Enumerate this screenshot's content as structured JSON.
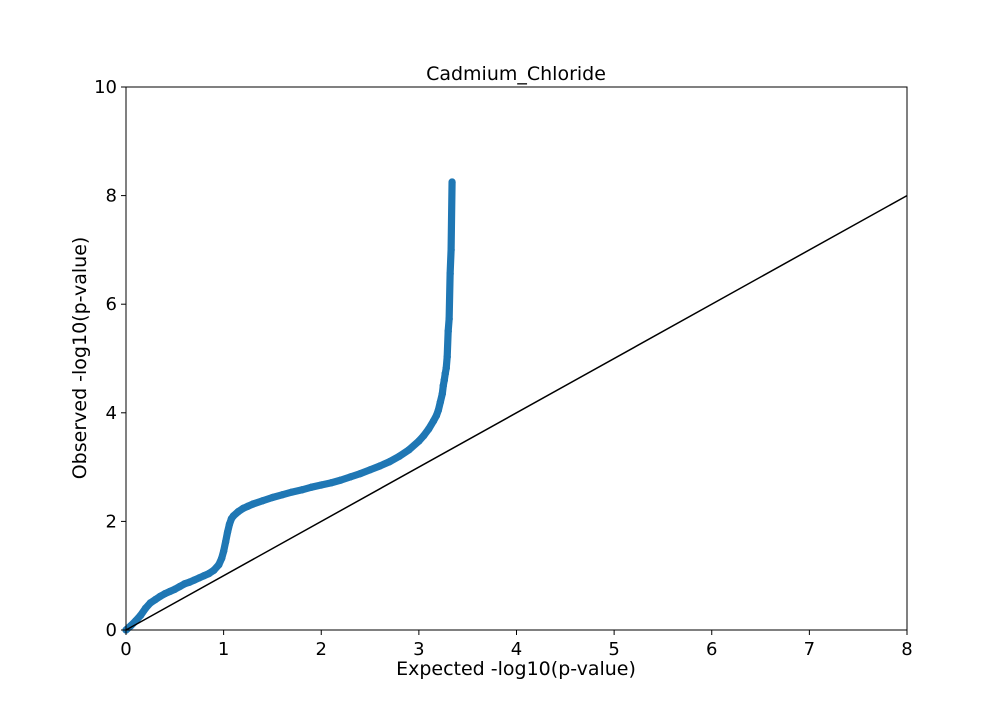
{
  "chart_data": {
    "type": "scatter",
    "title": "Cadmium_Chloride",
    "xlabel": "Expected -log10(p-value)",
    "ylabel": "Observed -log10(p-value)",
    "xlim": [
      0,
      8
    ],
    "ylim": [
      0,
      10
    ],
    "xticks": [
      "0",
      "1",
      "2",
      "3",
      "4",
      "5",
      "6",
      "7",
      "8"
    ],
    "yticks": [
      "0",
      "2",
      "4",
      "6",
      "8",
      "10"
    ],
    "grid": false,
    "point_color": "#1f77b4",
    "reference_line": {
      "from": [
        0,
        0
      ],
      "to": [
        8,
        8
      ],
      "color": "#000000"
    },
    "points": [
      [
        0.0,
        0.0
      ],
      [
        0.05,
        0.08
      ],
      [
        0.1,
        0.17
      ],
      [
        0.15,
        0.27
      ],
      [
        0.2,
        0.4
      ],
      [
        0.25,
        0.5
      ],
      [
        0.3,
        0.56
      ],
      [
        0.35,
        0.62
      ],
      [
        0.4,
        0.67
      ],
      [
        0.45,
        0.71
      ],
      [
        0.5,
        0.75
      ],
      [
        0.55,
        0.8
      ],
      [
        0.6,
        0.85
      ],
      [
        0.65,
        0.88
      ],
      [
        0.7,
        0.92
      ],
      [
        0.75,
        0.96
      ],
      [
        0.8,
        1.0
      ],
      [
        0.85,
        1.04
      ],
      [
        0.9,
        1.1
      ],
      [
        0.95,
        1.2
      ],
      [
        0.98,
        1.32
      ],
      [
        1.0,
        1.45
      ],
      [
        1.02,
        1.62
      ],
      [
        1.04,
        1.8
      ],
      [
        1.06,
        1.95
      ],
      [
        1.08,
        2.05
      ],
      [
        1.1,
        2.1
      ],
      [
        1.15,
        2.18
      ],
      [
        1.2,
        2.24
      ],
      [
        1.25,
        2.28
      ],
      [
        1.3,
        2.32
      ],
      [
        1.4,
        2.38
      ],
      [
        1.5,
        2.44
      ],
      [
        1.6,
        2.49
      ],
      [
        1.7,
        2.54
      ],
      [
        1.8,
        2.58
      ],
      [
        1.9,
        2.63
      ],
      [
        2.0,
        2.67
      ],
      [
        2.1,
        2.71
      ],
      [
        2.2,
        2.76
      ],
      [
        2.3,
        2.82
      ],
      [
        2.4,
        2.88
      ],
      [
        2.5,
        2.95
      ],
      [
        2.6,
        3.02
      ],
      [
        2.7,
        3.1
      ],
      [
        2.8,
        3.2
      ],
      [
        2.9,
        3.32
      ],
      [
        3.0,
        3.48
      ],
      [
        3.05,
        3.58
      ],
      [
        3.1,
        3.7
      ],
      [
        3.15,
        3.85
      ],
      [
        3.18,
        3.95
      ],
      [
        3.2,
        4.05
      ],
      [
        3.22,
        4.2
      ],
      [
        3.24,
        4.35
      ],
      [
        3.25,
        4.5
      ],
      [
        3.26,
        4.6
      ],
      [
        3.27,
        4.72
      ],
      [
        3.28,
        4.82
      ],
      [
        3.29,
        5.03
      ],
      [
        3.3,
        5.5
      ],
      [
        3.31,
        5.73
      ],
      [
        3.32,
        6.56
      ],
      [
        3.33,
        7.0
      ],
      [
        3.34,
        8.25
      ]
    ]
  }
}
